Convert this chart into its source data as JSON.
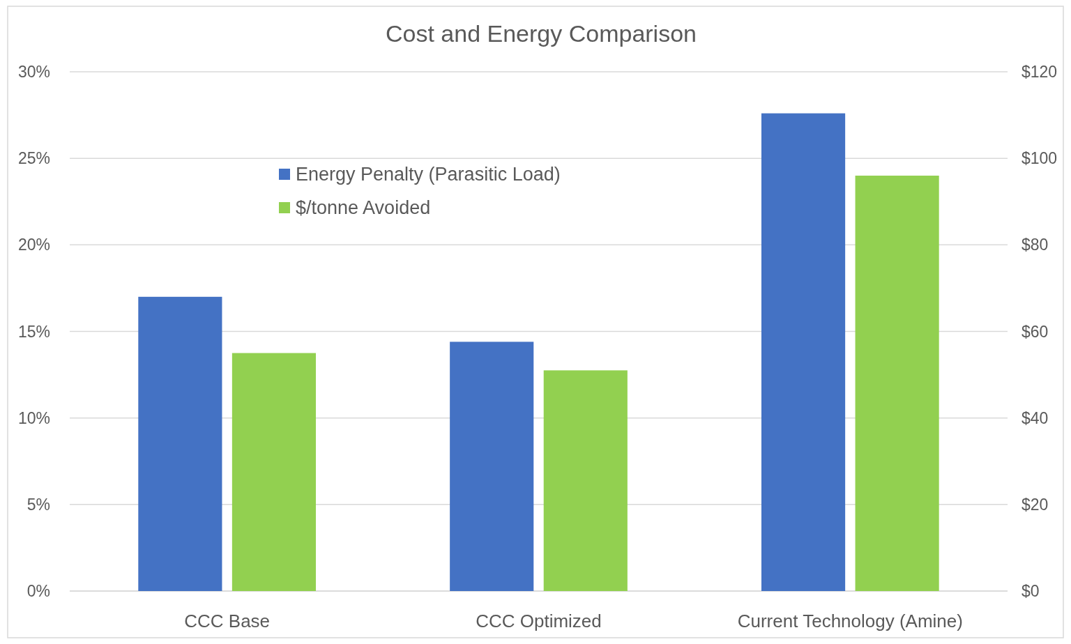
{
  "chart_data": {
    "type": "bar",
    "title": "Cost and Energy Comparison",
    "categories": [
      "CCC Base",
      "CCC Optimized",
      "Current Technology (Amine)"
    ],
    "series": [
      {
        "name": "Energy Penalty (Parasitic Load)",
        "color": "#4472c4",
        "values": [
          17,
          14.4,
          27.6
        ]
      },
      {
        "name": "$/tonne Avoided",
        "color": "#92d050",
        "values": [
          55,
          51,
          96
        ],
        "axis": "y2"
      }
    ],
    "ylim": [
      0,
      30
    ],
    "yticks": [
      {
        "value": 0,
        "label": "0%"
      },
      {
        "value": 5,
        "label": "5%"
      },
      {
        "value": 10,
        "label": "10%"
      },
      {
        "value": 15,
        "label": "15%"
      },
      {
        "value": 20,
        "label": "20%"
      },
      {
        "value": 25,
        "label": "25%"
      },
      {
        "value": 30,
        "label": "30%"
      }
    ],
    "y2lim": [
      0,
      120
    ],
    "y2ticks": [
      {
        "value": 0,
        "label": "$0"
      },
      {
        "value": 20,
        "label": "$20"
      },
      {
        "value": 40,
        "label": "$40"
      },
      {
        "value": 60,
        "label": "$60"
      },
      {
        "value": 80,
        "label": "$80"
      },
      {
        "value": 100,
        "label": "$100"
      },
      {
        "value": 120,
        "label": "$120"
      }
    ],
    "grid": "y",
    "legend": "top left"
  }
}
